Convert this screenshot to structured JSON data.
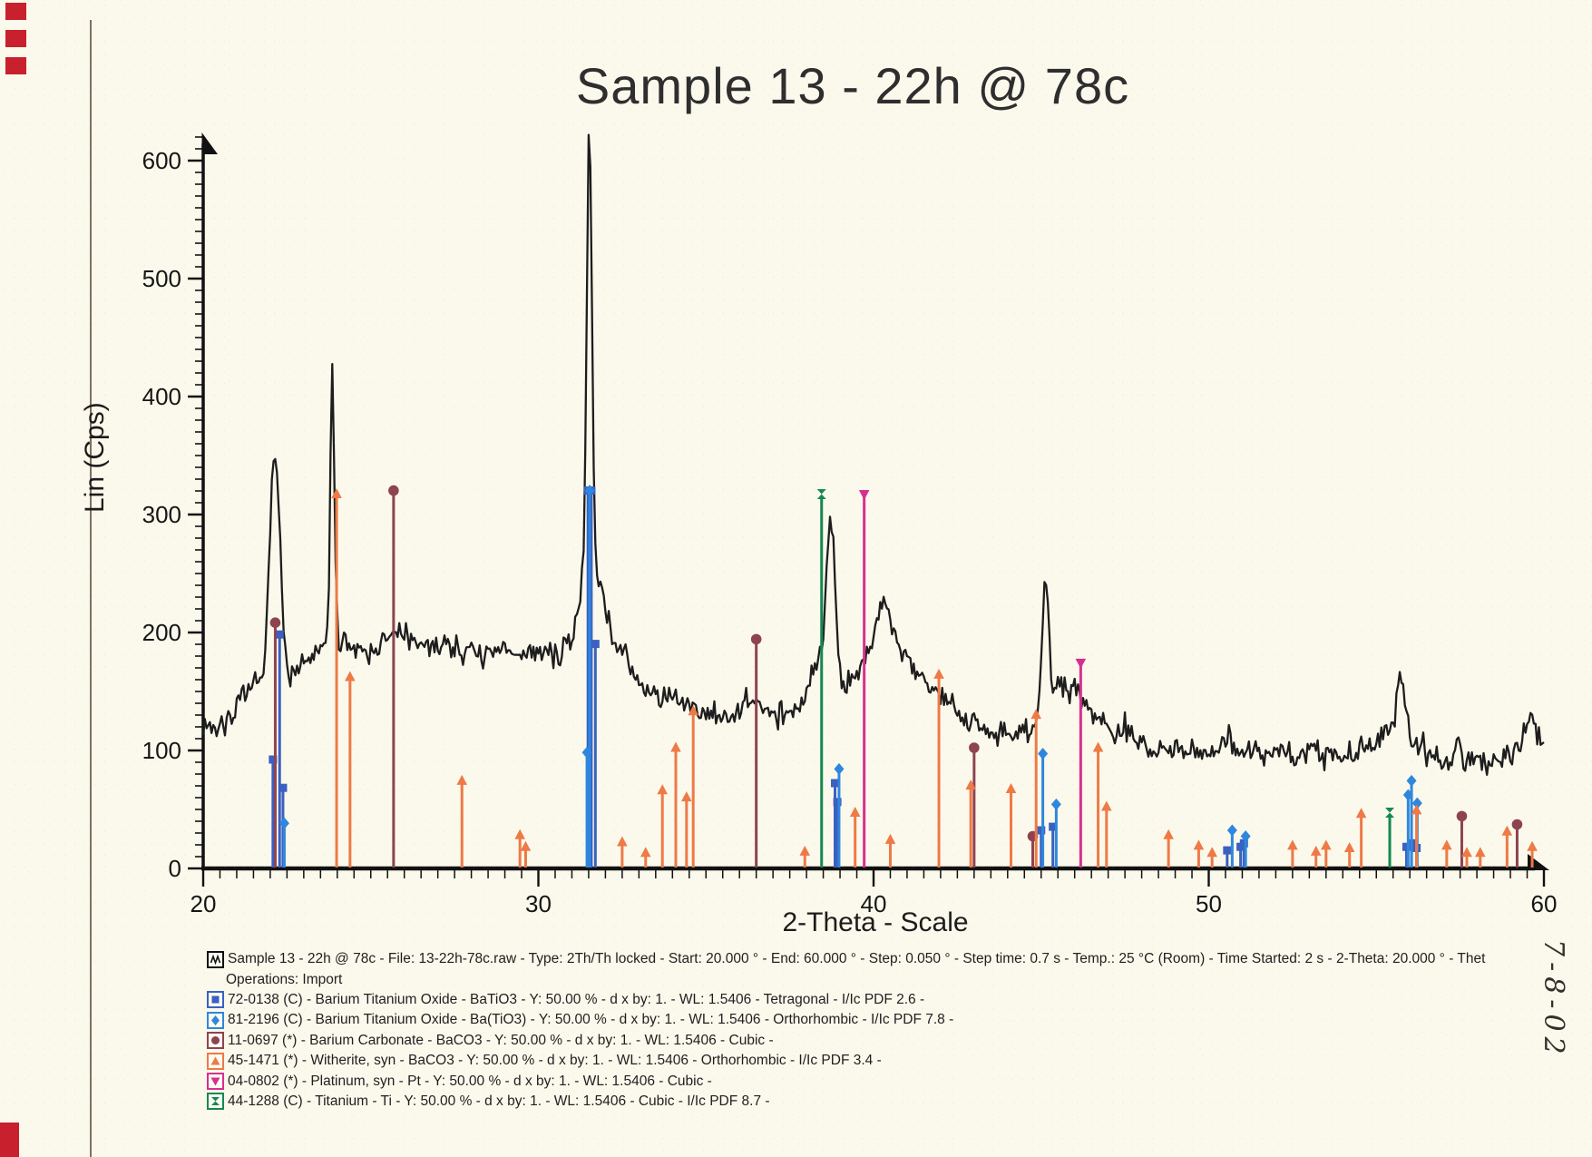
{
  "page": {
    "title": "Sample 13 - 22h @ 78c",
    "handwritten_note": "7-8-02"
  },
  "chart_data": {
    "type": "line",
    "title": "Sample 13 - 22h @ 78c",
    "xlabel": "2-Theta - Scale",
    "ylabel": "Lin (Cps)",
    "xlim": [
      20,
      60
    ],
    "ylim": [
      0,
      640
    ],
    "x_ticks": [
      20,
      30,
      40,
      50,
      60
    ],
    "y_ticks": [
      0,
      100,
      200,
      300,
      400,
      500,
      600
    ],
    "grid": false,
    "trace_color": "#1d1d1d",
    "curve": {
      "step": 0.05,
      "seed": 7,
      "noise_amplitude": 13,
      "baseline_anchors": [
        [
          20.0,
          125
        ],
        [
          20.3,
          118
        ],
        [
          20.6,
          122
        ],
        [
          21.0,
          138
        ],
        [
          21.4,
          148
        ],
        [
          21.8,
          158
        ],
        [
          22.2,
          160
        ],
        [
          22.6,
          162
        ],
        [
          23.0,
          172
        ],
        [
          23.4,
          182
        ],
        [
          24.0,
          196
        ],
        [
          24.6,
          188
        ],
        [
          25.0,
          185
        ],
        [
          25.4,
          192
        ],
        [
          25.8,
          200
        ],
        [
          26.2,
          195
        ],
        [
          26.6,
          185
        ],
        [
          27.0,
          192
        ],
        [
          27.4,
          188
        ],
        [
          27.8,
          185
        ],
        [
          28.2,
          182
        ],
        [
          28.6,
          180
        ],
        [
          29.0,
          186
        ],
        [
          29.4,
          180
        ],
        [
          29.8,
          186
        ],
        [
          30.2,
          182
        ],
        [
          30.6,
          180
        ],
        [
          31.0,
          188
        ],
        [
          31.3,
          195
        ],
        [
          32.0,
          215
        ],
        [
          32.4,
          185
        ],
        [
          32.8,
          165
        ],
        [
          33.2,
          152
        ],
        [
          33.6,
          148
        ],
        [
          34.0,
          142
        ],
        [
          34.4,
          138
        ],
        [
          34.8,
          132
        ],
        [
          35.2,
          130
        ],
        [
          35.6,
          128
        ],
        [
          36.0,
          133
        ],
        [
          36.4,
          140
        ],
        [
          36.8,
          135
        ],
        [
          37.2,
          132
        ],
        [
          37.6,
          133
        ],
        [
          38.0,
          142
        ],
        [
          38.3,
          152
        ],
        [
          39.2,
          158
        ],
        [
          39.6,
          168
        ],
        [
          39.9,
          180
        ],
        [
          40.1,
          195
        ],
        [
          40.3,
          205
        ],
        [
          40.5,
          192
        ],
        [
          40.8,
          182
        ],
        [
          41.2,
          172
        ],
        [
          41.6,
          158
        ],
        [
          42.0,
          148
        ],
        [
          42.4,
          138
        ],
        [
          42.8,
          128
        ],
        [
          43.2,
          120
        ],
        [
          43.6,
          115
        ],
        [
          44.0,
          112
        ],
        [
          44.4,
          115
        ],
        [
          44.8,
          120
        ],
        [
          45.6,
          142
        ],
        [
          46.0,
          152
        ],
        [
          46.2,
          145
        ],
        [
          46.5,
          135
        ],
        [
          47.0,
          122
        ],
        [
          47.5,
          112
        ],
        [
          48.0,
          106
        ],
        [
          48.5,
          101
        ],
        [
          49.0,
          106
        ],
        [
          49.5,
          100
        ],
        [
          50.0,
          101
        ],
        [
          50.5,
          106
        ],
        [
          51.0,
          100
        ],
        [
          51.5,
          96
        ],
        [
          52.0,
          101
        ],
        [
          52.5,
          96
        ],
        [
          53.0,
          100
        ],
        [
          53.5,
          95
        ],
        [
          54.0,
          96
        ],
        [
          54.5,
          100
        ],
        [
          55.0,
          106
        ],
        [
          55.3,
          112
        ],
        [
          56.2,
          102
        ],
        [
          56.6,
          98
        ],
        [
          57.0,
          94
        ],
        [
          57.5,
          90
        ],
        [
          58.0,
          95
        ],
        [
          58.5,
          90
        ],
        [
          59.0,
          96
        ],
        [
          59.4,
          106
        ],
        [
          59.7,
          115
        ],
        [
          60.0,
          104
        ]
      ],
      "peaks": [
        {
          "c": 22.18,
          "a": 180,
          "s": 0.13
        },
        {
          "c": 22.0,
          "a": 60,
          "s": 0.1
        },
        {
          "c": 23.85,
          "a": 230,
          "s": 0.06
        },
        {
          "c": 31.52,
          "a": 370,
          "s": 0.075
        },
        {
          "c": 31.52,
          "a": 60,
          "s": 0.25
        },
        {
          "c": 38.72,
          "a": 138,
          "s": 0.13
        },
        {
          "c": 38.35,
          "a": 25,
          "s": 0.2
        },
        {
          "c": 40.3,
          "a": 25,
          "s": 0.25
        },
        {
          "c": 45.12,
          "a": 112,
          "s": 0.1
        },
        {
          "c": 45.5,
          "a": 15,
          "s": 0.2
        },
        {
          "c": 50.6,
          "a": 18,
          "s": 0.05
        },
        {
          "c": 55.75,
          "a": 55,
          "s": 0.13
        },
        {
          "c": 57.45,
          "a": 25,
          "s": 0.06
        },
        {
          "c": 59.55,
          "a": 18,
          "s": 0.12
        }
      ]
    },
    "stick_series": [
      {
        "id": "batio3-tetragonal-72-0138",
        "label": "72-0138 BaTiO3 Tetragonal",
        "marker": "square",
        "color": "#3a60c0",
        "peaks": [
          [
            22.08,
            90
          ],
          [
            22.28,
            196
          ],
          [
            22.38,
            66
          ],
          [
            31.48,
            318
          ],
          [
            31.58,
            318
          ],
          [
            31.7,
            188
          ],
          [
            38.85,
            70
          ],
          [
            38.92,
            54
          ],
          [
            45.0,
            30
          ],
          [
            45.35,
            33
          ],
          [
            50.55,
            13
          ],
          [
            50.95,
            16
          ],
          [
            51.05,
            19
          ],
          [
            55.9,
            16
          ],
          [
            56.05,
            19
          ],
          [
            56.2,
            15
          ]
        ]
      },
      {
        "id": "batio3-orthorhombic-81-2196",
        "label": "81-2196 Ba(TiO3) Orthorhombic",
        "marker": "diamond",
        "color": "#2e87dd",
        "peaks": [
          [
            22.42,
            36
          ],
          [
            31.45,
            96
          ],
          [
            31.53,
            318
          ],
          [
            38.97,
            82
          ],
          [
            45.05,
            95
          ],
          [
            45.45,
            52
          ],
          [
            50.7,
            30
          ],
          [
            51.1,
            25
          ],
          [
            55.95,
            60
          ],
          [
            56.05,
            72
          ],
          [
            56.22,
            53
          ]
        ]
      },
      {
        "id": "baco3-cubic-11-0697",
        "label": "11-0697 BaCO3 Cubic",
        "marker": "circle",
        "color": "#8e4350",
        "peaks": [
          [
            22.15,
            206
          ],
          [
            25.68,
            318
          ],
          [
            36.5,
            192
          ],
          [
            43.0,
            100
          ],
          [
            44.75,
            25
          ],
          [
            57.55,
            42
          ],
          [
            59.2,
            35
          ]
        ]
      },
      {
        "id": "witherite-45-1471",
        "label": "45-1471 Witherite BaCO3",
        "marker": "triangle-up",
        "color": "#ee7a46",
        "peaks": [
          [
            23.98,
            315
          ],
          [
            24.38,
            160
          ],
          [
            27.72,
            72
          ],
          [
            29.45,
            26
          ],
          [
            29.62,
            16
          ],
          [
            32.5,
            20
          ],
          [
            33.2,
            11
          ],
          [
            33.7,
            64
          ],
          [
            34.1,
            100
          ],
          [
            34.42,
            58
          ],
          [
            34.62,
            131
          ],
          [
            37.95,
            12
          ],
          [
            39.45,
            45
          ],
          [
            40.5,
            22
          ],
          [
            41.95,
            162
          ],
          [
            42.9,
            68
          ],
          [
            44.1,
            65
          ],
          [
            44.85,
            128
          ],
          [
            46.7,
            100
          ],
          [
            46.95,
            50
          ],
          [
            48.8,
            26
          ],
          [
            49.7,
            17
          ],
          [
            50.1,
            11
          ],
          [
            52.5,
            17
          ],
          [
            53.2,
            12
          ],
          [
            53.5,
            17
          ],
          [
            54.2,
            15
          ],
          [
            54.55,
            44
          ],
          [
            56.2,
            47
          ],
          [
            57.1,
            17
          ],
          [
            57.7,
            11
          ],
          [
            58.1,
            11
          ],
          [
            58.9,
            29
          ],
          [
            59.65,
            16
          ]
        ]
      },
      {
        "id": "platinum-04-0802",
        "label": "04-0802 Platinum",
        "marker": "triangle-down",
        "color": "#d6308f",
        "peaks": [
          [
            39.72,
            315
          ],
          [
            46.18,
            172
          ]
        ]
      },
      {
        "id": "titanium-44-1288",
        "label": "44-1288 Titanium",
        "marker": "hourglass",
        "color": "#14894f",
        "peaks": [
          [
            38.45,
            315
          ],
          [
            55.4,
            45
          ]
        ]
      }
    ]
  },
  "legend": {
    "lines": [
      {
        "icon": "zigzag",
        "color": "#111111",
        "text": "Sample 13 - 22h @ 78c - File: 13-22h-78c.raw - Type: 2Th/Th locked - Start: 20.000 ° - End: 60.000 ° - Step: 0.050 ° - Step time: 0.7 s - Temp.: 25 °C (Room) - Time Started: 2 s - 2-Theta: 20.000 ° - Thet"
      },
      {
        "icon": null,
        "color": null,
        "text": "Operations: Import"
      },
      {
        "icon": "square",
        "color": "#3a60c0",
        "text": "72-0138 (C) - Barium Titanium Oxide - BaTiO3 - Y: 50.00 % - d x by: 1. - WL: 1.5406 - Tetragonal - I/Ic PDF 2.6 -"
      },
      {
        "icon": "diamond",
        "color": "#2e87dd",
        "text": "81-2196 (C) - Barium Titanium Oxide - Ba(TiO3) - Y: 50.00 % - d x by: 1. - WL: 1.5406 - Orthorhombic - I/Ic PDF 7.8 -"
      },
      {
        "icon": "circle",
        "color": "#8e4350",
        "text": "11-0697 (*) - Barium Carbonate - BaCO3 - Y: 50.00 % - d x by: 1. - WL: 1.5406 - Cubic -"
      },
      {
        "icon": "triangle-up",
        "color": "#ee7a46",
        "text": "45-1471 (*) - Witherite, syn - BaCO3 - Y: 50.00 % - d x by: 1. - WL: 1.5406 - Orthorhombic - I/Ic PDF 3.4 -"
      },
      {
        "icon": "triangle-down",
        "color": "#d6308f",
        "text": "04-0802 (*) - Platinum, syn - Pt - Y: 50.00 % - d x by: 1. - WL: 1.5406 - Cubic -"
      },
      {
        "icon": "hourglass",
        "color": "#14894f",
        "text": "44-1288 (C) - Titanium - Ti - Y: 50.00 % - d x by: 1. - WL: 1.5406 - Cubic - I/Ic PDF 8.7 -"
      }
    ]
  }
}
